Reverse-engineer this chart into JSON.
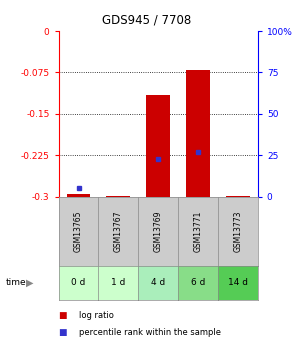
{
  "title": "GDS945 / 7708",
  "samples": [
    "GSM13765",
    "GSM13767",
    "GSM13769",
    "GSM13771",
    "GSM13773"
  ],
  "time_labels": [
    "0 d",
    "1 d",
    "4 d",
    "6 d",
    "14 d"
  ],
  "log_ratios": [
    -0.295,
    -0.299,
    -0.115,
    -0.07,
    -0.299
  ],
  "percentile_ranks": [
    5.0,
    null,
    23.0,
    27.0,
    null
  ],
  "y_min": -0.3,
  "y_max": 0.0,
  "y_ticks": [
    0,
    -0.075,
    -0.15,
    -0.225,
    -0.3
  ],
  "right_y_ticks": [
    0,
    25,
    50,
    75,
    100
  ],
  "bar_color": "#cc0000",
  "blue_color": "#3333cc",
  "bar_width": 0.6,
  "background_color": "#ffffff",
  "gsm_box_color": "#cccccc",
  "time_box_colors": [
    "#ccffcc",
    "#ccffcc",
    "#aaeebb",
    "#88dd88",
    "#55cc55"
  ],
  "legend_log_ratio_color": "#cc0000",
  "legend_percentile_color": "#3333cc"
}
